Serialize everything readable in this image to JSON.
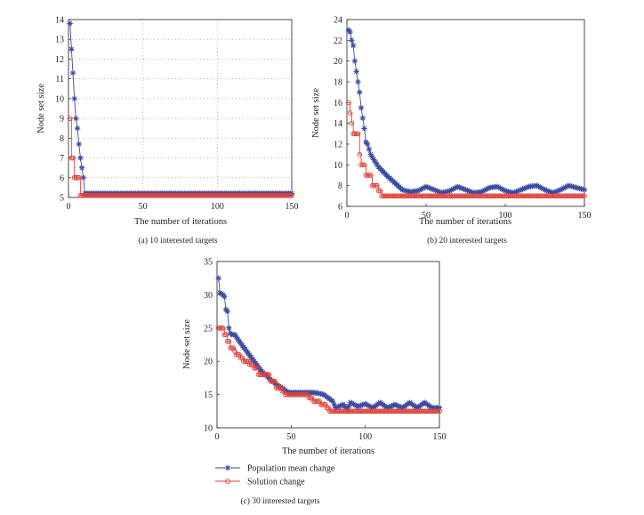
{
  "legend": {
    "position": "below-panel-c",
    "entries": [
      {
        "label": "Population mean change",
        "color": "#3a4ba3",
        "marker": "asterisk"
      },
      {
        "label": "Solution change",
        "color": "#e0403a",
        "marker": "circle"
      }
    ]
  },
  "chart_data": [
    {
      "type": "line",
      "caption": "(a)  10 interested targets",
      "xlabel": "The number of iterations",
      "ylabel": "Node set size",
      "xlim": [
        0,
        150
      ],
      "ylim": [
        5,
        14
      ],
      "xticks": [
        0,
        50,
        100,
        150
      ],
      "yticks": [
        5,
        6,
        7,
        8,
        9,
        10,
        11,
        12,
        13,
        14
      ],
      "grid": "dotted",
      "series": [
        {
          "name": "Population mean change",
          "color": "#3a4ba3",
          "marker": "asterisk",
          "x": [
            1,
            2,
            3,
            4,
            5,
            6,
            7,
            8,
            9,
            10,
            11,
            150
          ],
          "y": [
            13.8,
            12.5,
            11.3,
            10.0,
            9.0,
            8.5,
            7.7,
            7.0,
            6.5,
            6.0,
            5.2,
            5.2
          ]
        },
        {
          "name": "Solution change",
          "color": "#e0403a",
          "marker": "circle",
          "x": [
            1,
            2,
            3,
            4,
            5,
            6,
            7,
            8,
            9,
            150
          ],
          "y": [
            9,
            7,
            7,
            6,
            6,
            6,
            6,
            5.1,
            5.1,
            5.1
          ]
        }
      ]
    },
    {
      "type": "line",
      "caption": "(b)  20 interested targets",
      "xlabel": "The number of iterations",
      "ylabel": "Node set size",
      "xlim": [
        0,
        150
      ],
      "ylim": [
        6,
        24
      ],
      "xticks": [
        0,
        50,
        100,
        150
      ],
      "yticks": [
        6,
        8,
        10,
        12,
        14,
        16,
        18,
        20,
        22,
        24
      ],
      "grid": "none",
      "series": [
        {
          "name": "Population mean change",
          "color": "#3a4ba3",
          "marker": "asterisk",
          "x": [
            1,
            2,
            3,
            4,
            5,
            6,
            7,
            8,
            9,
            10,
            11,
            12,
            13,
            15,
            17,
            20,
            25,
            30,
            35,
            40,
            45,
            50,
            55,
            60,
            65,
            70,
            75,
            80,
            85,
            90,
            95,
            100,
            105,
            110,
            115,
            120,
            125,
            130,
            135,
            140,
            145,
            150
          ],
          "y": [
            23,
            22.8,
            22.0,
            21.5,
            20.0,
            19.0,
            18.0,
            17.0,
            15.5,
            14.5,
            13.5,
            12.2,
            12.0,
            11.0,
            10.5,
            9.8,
            9.0,
            8.3,
            7.6,
            7.4,
            7.5,
            7.9,
            7.6,
            7.3,
            7.5,
            7.9,
            7.6,
            7.3,
            7.4,
            7.8,
            7.9,
            7.5,
            7.3,
            7.6,
            7.9,
            8.0,
            7.6,
            7.3,
            7.6,
            8.0,
            7.8,
            7.6
          ]
        },
        {
          "name": "Solution change",
          "color": "#e0403a",
          "marker": "circle",
          "x": [
            1,
            2,
            3,
            4,
            5,
            6,
            7,
            8,
            9,
            10,
            11,
            12,
            13,
            14,
            15,
            16,
            17,
            18,
            19,
            20,
            21,
            22,
            150
          ],
          "y": [
            16,
            15,
            14,
            13,
            13,
            13,
            13,
            11,
            10,
            10,
            10,
            9,
            9,
            9,
            9,
            8,
            8,
            8,
            8,
            7.5,
            7.5,
            7,
            7
          ]
        }
      ]
    },
    {
      "type": "line",
      "caption": "(c)  30 interested targets",
      "xlabel": "The number of iterations",
      "ylabel": "Node set size",
      "xlim": [
        0,
        150
      ],
      "ylim": [
        10,
        35
      ],
      "xticks": [
        0,
        50,
        100,
        150
      ],
      "yticks": [
        10,
        15,
        20,
        25,
        30,
        35
      ],
      "grid": "none",
      "series": [
        {
          "name": "Population mean change",
          "color": "#3a4ba3",
          "marker": "asterisk",
          "x": [
            1,
            2,
            4,
            5,
            6,
            7,
            8,
            9,
            10,
            11,
            12,
            15,
            20,
            25,
            30,
            35,
            40,
            44,
            48,
            55,
            60,
            65,
            68,
            72,
            75,
            78,
            80,
            85,
            88,
            90,
            95,
            100,
            105,
            110,
            115,
            120,
            125,
            130,
            135,
            140,
            145,
            150
          ],
          "y": [
            32.5,
            30.3,
            30,
            29.7,
            27.8,
            27.5,
            25,
            24.2,
            24,
            24,
            24,
            23,
            21.5,
            20,
            18.5,
            17.5,
            16.5,
            16,
            15.3,
            15.3,
            15.3,
            15.3,
            15.2,
            15,
            14.5,
            14,
            13,
            13.5,
            12.8,
            13.8,
            13.2,
            13.6,
            13,
            13.8,
            13,
            13.5,
            13,
            13.8,
            13,
            13.8,
            13,
            13
          ]
        },
        {
          "name": "Solution change",
          "color": "#e0403a",
          "marker": "circle",
          "x": [
            1,
            2,
            3,
            4,
            5,
            6,
            7,
            8,
            9,
            10,
            11,
            12,
            13,
            14,
            15,
            16,
            18,
            20,
            22,
            25,
            28,
            30,
            32,
            34,
            36,
            38,
            40,
            42,
            44,
            46,
            48,
            50,
            55,
            60,
            62,
            65,
            68,
            70,
            72,
            74,
            76,
            78,
            150
          ],
          "y": [
            25,
            25,
            25,
            25,
            24,
            24,
            23,
            23,
            22,
            22,
            22,
            21.5,
            21,
            21,
            21,
            20.5,
            20,
            20,
            19.5,
            19,
            18,
            18,
            18,
            18,
            17,
            17,
            16,
            16,
            15.5,
            15,
            15,
            15,
            15,
            15,
            14.5,
            14,
            14,
            13.5,
            13.5,
            13,
            12.5,
            12.5,
            12.5
          ]
        }
      ]
    }
  ]
}
